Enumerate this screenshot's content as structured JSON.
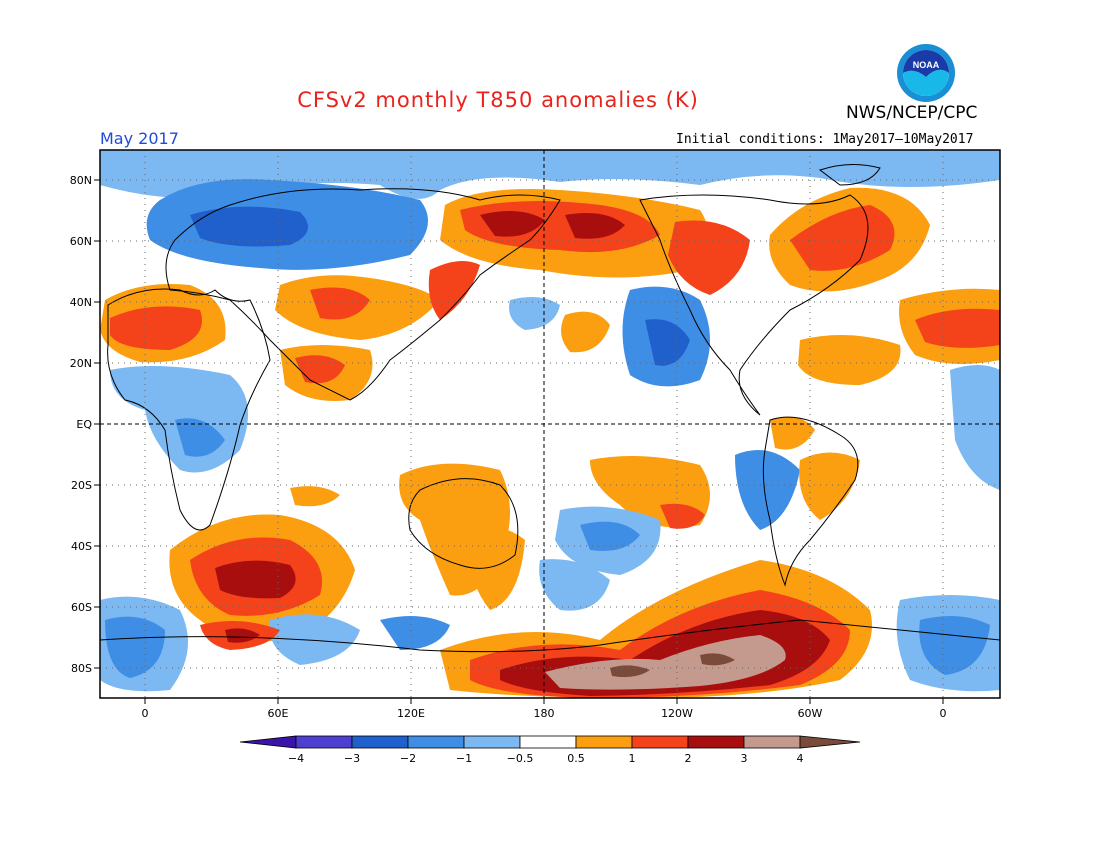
{
  "header": {
    "title": "CFSv2 monthly T850 anomalies (K)",
    "agency": "NWS/NCEP/CPC",
    "month": "May 2017",
    "initial_conditions": "Initial conditions: 1May2017—10May2017",
    "logo_label": "NOAA"
  },
  "axes": {
    "lat_labels": [
      "80N",
      "60N",
      "40N",
      "20N",
      "EQ",
      "20S",
      "40S",
      "60S",
      "80S"
    ],
    "lon_labels": [
      "0",
      "60E",
      "120E",
      "180",
      "120W",
      "60W",
      "0"
    ]
  },
  "colorbar": {
    "labels": [
      "−4",
      "−3",
      "−2",
      "−1",
      "−0.5",
      "0.5",
      "1",
      "2",
      "3",
      "4"
    ],
    "colors": [
      "#3a14a8",
      "#4e3fd0",
      "#2060cc",
      "#3f8ee6",
      "#7cb8f2",
      "#ffffff",
      "#fb9e0f",
      "#f4421a",
      "#a80e0e",
      "#c49a8e",
      "#7a4a3a"
    ]
  },
  "colors": {
    "title": "#e8231c",
    "month": "#1f4bd8",
    "cold_strong": "#2060cc",
    "cold": "#3f8ee6",
    "cold_weak": "#7cb8f2",
    "warm_weak": "#fb9e0f",
    "warm": "#f4421a",
    "warm_strong": "#a80e0e",
    "warm_extreme": "#c49a8e"
  }
}
